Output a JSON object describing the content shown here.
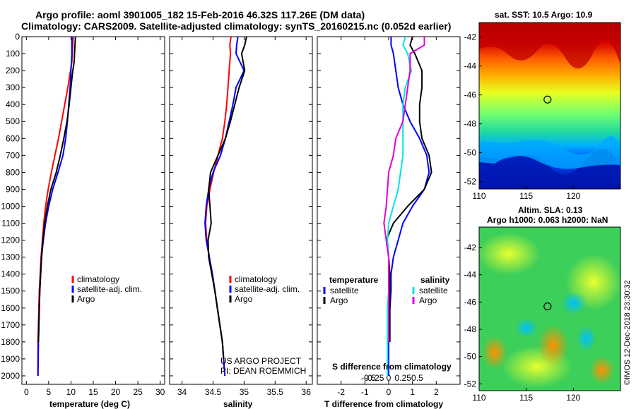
{
  "title": {
    "line1": "Argo profile: aoml 3901005_182 15-Feb-2016 46.32S 117.26E (DM data)",
    "line2": "Climatology: CARS2009. Satellite-adjusted climatology: synTS_20160215.nc (0.052d earlier)"
  },
  "chart_data": [
    {
      "type": "line",
      "panel": "temperature",
      "xlabel": "temperature (deg C)",
      "ylabel": "",
      "xlim": [
        -1,
        31
      ],
      "ylim": [
        2050,
        0
      ],
      "xticks": [
        "0",
        "5",
        "10",
        "15",
        "20",
        "25",
        "30"
      ],
      "xtick_values": [
        0,
        5,
        10,
        15,
        20,
        25,
        30
      ],
      "yticks": [
        "0",
        "100",
        "200",
        "300",
        "400",
        "500",
        "600",
        "700",
        "800",
        "900",
        "1000",
        "1100",
        "1200",
        "1300",
        "1400",
        "1500",
        "1600",
        "1700",
        "1800",
        "1900",
        "2000"
      ],
      "ytick_values": [
        0,
        100,
        200,
        300,
        400,
        500,
        600,
        700,
        800,
        900,
        1000,
        1100,
        1200,
        1300,
        1400,
        1500,
        1600,
        1700,
        1800,
        1900,
        2000
      ],
      "legend": [
        {
          "label": "climatology",
          "color": "#ff0000"
        },
        {
          "label": "satellite-adj. clim.",
          "color": "#0000ff"
        },
        {
          "label": "Argo",
          "color": "#000000"
        }
      ],
      "series": [
        {
          "name": "climatology",
          "color": "#ff0000",
          "x": [
            10.5,
            10.4,
            10.3,
            10.2,
            9.9,
            9.3,
            8.6,
            7.9,
            7.2,
            6.4,
            5.6,
            4.9,
            4.3,
            3.9,
            3.6,
            3.3,
            3.1,
            2.9,
            2.8,
            2.7,
            2.6,
            2.6
          ],
          "y": [
            0,
            50,
            100,
            150,
            200,
            300,
            400,
            500,
            600,
            700,
            800,
            900,
            1000,
            1100,
            1200,
            1300,
            1400,
            1500,
            1600,
            1700,
            1800,
            2000
          ]
        },
        {
          "name": "satellite-adj. clim.",
          "color": "#0000ff",
          "x": [
            10.2,
            10.2,
            10.2,
            10.1,
            10.0,
            9.8,
            9.5,
            9.2,
            8.8,
            8.2,
            7.1,
            5.9,
            5.0,
            4.3,
            3.8,
            3.4,
            3.2,
            3.0,
            2.9,
            2.8,
            2.7,
            2.6
          ],
          "y": [
            0,
            50,
            100,
            150,
            200,
            300,
            400,
            500,
            600,
            700,
            800,
            900,
            1000,
            1100,
            1200,
            1300,
            1400,
            1500,
            1600,
            1700,
            1800,
            2000
          ]
        },
        {
          "name": "Argo",
          "color": "#000000",
          "x": [
            11.0,
            10.9,
            10.8,
            10.7,
            10.4,
            10.0,
            9.6,
            9.1,
            8.4,
            7.6,
            6.7,
            5.5,
            4.7,
            4.1,
            3.7,
            3.4,
            3.2,
            3.0,
            2.9,
            2.8,
            2.7
          ],
          "y": [
            0,
            50,
            100,
            150,
            200,
            300,
            400,
            500,
            600,
            700,
            800,
            900,
            1000,
            1100,
            1200,
            1300,
            1400,
            1500,
            1600,
            1700,
            1800
          ]
        }
      ]
    },
    {
      "type": "line",
      "panel": "salinity",
      "xlabel": "salinity",
      "ylabel": "",
      "xlim": [
        33.8,
        36.1
      ],
      "ylim": [
        2050,
        0
      ],
      "xticks": [
        "34",
        "34.5",
        "35",
        "35.5",
        "36"
      ],
      "xtick_values": [
        34,
        34.5,
        35,
        35.5,
        36
      ],
      "legend": [
        {
          "label": "climatology",
          "color": "#ff0000"
        },
        {
          "label": "satellite-adj. clim.",
          "color": "#0000ff"
        },
        {
          "label": "Argo",
          "color": "#000000"
        }
      ],
      "annotations": [
        "US ARGO PROJECT",
        "PI: DEAN ROEMMICH"
      ],
      "series": [
        {
          "name": "climatology",
          "color": "#ff0000",
          "x": [
            34.79,
            34.77,
            34.78,
            34.76,
            34.74,
            34.72,
            34.69,
            34.65,
            34.58,
            34.51,
            34.45,
            34.4,
            34.38,
            34.4,
            34.44,
            34.49,
            34.53,
            34.57,
            34.61,
            34.65,
            34.69
          ],
          "y": [
            0,
            50,
            100,
            200,
            300,
            400,
            500,
            600,
            700,
            800,
            900,
            1000,
            1100,
            1200,
            1300,
            1400,
            1500,
            1600,
            1700,
            1800,
            2000
          ]
        },
        {
          "name": "satellite-adj. clim.",
          "color": "#0000ff",
          "x": [
            34.9,
            34.88,
            34.87,
            35.0,
            34.87,
            34.82,
            34.76,
            34.7,
            34.62,
            34.5,
            34.43,
            34.39,
            34.37,
            34.39,
            34.44,
            34.49,
            34.53,
            34.57,
            34.61,
            34.65,
            34.69
          ],
          "y": [
            0,
            50,
            100,
            200,
            300,
            400,
            500,
            600,
            700,
            800,
            900,
            1000,
            1100,
            1200,
            1300,
            1400,
            1500,
            1600,
            1700,
            1800,
            2000
          ]
        },
        {
          "name": "Argo",
          "color": "#000000",
          "x": [
            35.04,
            35.01,
            34.96,
            35.01,
            34.92,
            34.85,
            34.78,
            34.7,
            34.58,
            34.46,
            34.43,
            34.45,
            34.47,
            34.42,
            34.43,
            34.48,
            34.53,
            34.57,
            34.61,
            34.65,
            34.67
          ],
          "y": [
            0,
            50,
            100,
            200,
            300,
            400,
            500,
            600,
            700,
            800,
            900,
            1000,
            1100,
            1200,
            1300,
            1400,
            1500,
            1600,
            1700,
            1800,
            1900
          ]
        }
      ]
    },
    {
      "type": "line",
      "panel": "difference",
      "xlabel": "T difference from climatology",
      "xlabel2": "S difference from climatology",
      "ylabel": "",
      "xlim": [
        -3,
        3
      ],
      "ylim": [
        2050,
        0
      ],
      "xticks": [
        "-2",
        "-1",
        "0",
        "1",
        "2"
      ],
      "xtick_values": [
        -2,
        -1,
        0,
        1,
        2
      ],
      "xticks2": [
        "-0.5",
        "-0.25",
        "0",
        "0.25",
        "0.5"
      ],
      "legend_temperature_title": "temperature",
      "legend_salinity_title": "salinity",
      "legend": [
        {
          "label": "satellite",
          "color": "#0000ff",
          "group": "temperature"
        },
        {
          "label": "Argo",
          "color": "#000000",
          "group": "temperature"
        },
        {
          "label": "satellite",
          "color": "#00e5e5",
          "group": "salinity"
        },
        {
          "label": "Argo",
          "color": "#e000e0",
          "group": "salinity"
        }
      ],
      "series": [
        {
          "name": "T satellite",
          "color": "#0000ff",
          "x": [
            0.1,
            0.1,
            0.2,
            0.3,
            0.4,
            0.6,
            0.9,
            1.3,
            1.6,
            1.7,
            1.5,
            1.0,
            0.6,
            0.4,
            0.2,
            0.1,
            0.1,
            0.05,
            0.02,
            0.0,
            0.0
          ],
          "y": [
            0,
            50,
            100,
            200,
            300,
            400,
            500,
            600,
            700,
            800,
            900,
            1000,
            1100,
            1200,
            1300,
            1400,
            1500,
            1600,
            1700,
            1800,
            2000
          ]
        },
        {
          "name": "T Argo",
          "color": "#000000",
          "x": [
            1.0,
            0.9,
            1.1,
            1.4,
            1.4,
            1.3,
            1.3,
            1.4,
            1.7,
            1.8,
            1.5,
            0.8,
            0.2,
            -0.1,
            0.0,
            0.05,
            0.05,
            0.05,
            0.05,
            0.05
          ],
          "y": [
            0,
            50,
            100,
            200,
            300,
            400,
            500,
            600,
            700,
            800,
            900,
            1000,
            1100,
            1200,
            1300,
            1400,
            1500,
            1600,
            1700,
            1800
          ]
        },
        {
          "name": "S satellite",
          "color": "#00e5e5",
          "x": [
            0.7,
            0.6,
            0.8,
            0.95,
            0.7,
            0.6,
            0.6,
            0.6,
            0.6,
            0.5,
            0.4,
            0.2,
            0.0,
            -0.05,
            0.0,
            0.0,
            0.0,
            -0.05,
            -0.05,
            -0.05,
            -0.05
          ],
          "y": [
            0,
            50,
            100,
            200,
            300,
            400,
            500,
            600,
            700,
            800,
            900,
            1000,
            1100,
            1200,
            1300,
            1400,
            1500,
            1600,
            1700,
            1800,
            2000
          ]
        },
        {
          "name": "S Argo",
          "color": "#e000e0",
          "x": [
            1.5,
            1.5,
            0.9,
            0.9,
            0.8,
            0.7,
            0.6,
            0.3,
            0.2,
            0.0,
            -0.05,
            -0.1,
            -0.2,
            -0.1,
            0.0,
            0.0,
            0.0,
            0.0,
            0.0,
            0.0
          ],
          "y": [
            0,
            50,
            100,
            200,
            300,
            400,
            500,
            600,
            700,
            800,
            900,
            1000,
            1100,
            1200,
            1300,
            1400,
            1500,
            1600,
            1700,
            1800
          ]
        }
      ]
    }
  ],
  "maps": {
    "sst": {
      "title": "sat. SST: 10.5 Argo: 10.9",
      "yticks": [
        "-42",
        "-44",
        "-46",
        "-48",
        "-50",
        "-52"
      ],
      "ytick_values": [
        -42,
        -44,
        -46,
        -48,
        -50,
        -52
      ],
      "xticks": [
        "110",
        "115",
        "120"
      ],
      "xtick_values": [
        110,
        115,
        120
      ],
      "lon_range": [
        110,
        125
      ],
      "lat_range": [
        -52.5,
        -41
      ],
      "marker": {
        "lon": 117.26,
        "lat": -46.32
      }
    },
    "sla": {
      "title1": "Altim. SLA: 0.13",
      "title2": "Argo h1000: 0.063 h2000: NaN",
      "yticks": [
        "-42",
        "-44",
        "-46",
        "-48",
        "-50",
        "-52"
      ],
      "ytick_values": [
        -42,
        -44,
        -46,
        -48,
        -50,
        -52
      ],
      "xticks": [
        "110",
        "115",
        "120"
      ],
      "xtick_values": [
        110,
        115,
        120
      ],
      "lon_range": [
        110,
        125
      ],
      "lat_range": [
        -52.5,
        -40.5
      ],
      "marker": {
        "lon": 117.26,
        "lat": -46.32
      }
    }
  },
  "credit": "©IMOS 12-Dec-2018 23:30:32"
}
